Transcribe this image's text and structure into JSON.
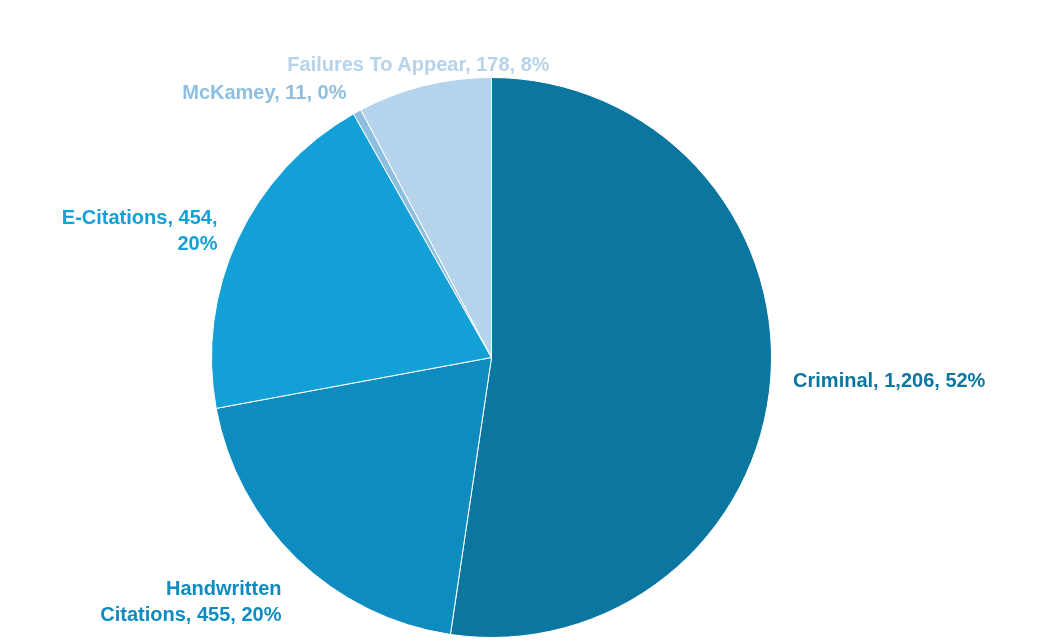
{
  "chart_data": {
    "type": "pie",
    "categories": [
      "Criminal",
      "Handwritten Citations",
      "E-Citations",
      "McKamey",
      "Failures To Appear"
    ],
    "values": [
      1206,
      455,
      454,
      11,
      178
    ],
    "colors": [
      "#0b76a0",
      "#0e8bbf",
      "#12a0d7",
      "#8fbfe0",
      "#b5d3ea"
    ],
    "value_labels": [
      "1,206, 52%",
      "455, 20%",
      "454, 20%",
      "11, 0%",
      "178, 8%"
    ]
  }
}
